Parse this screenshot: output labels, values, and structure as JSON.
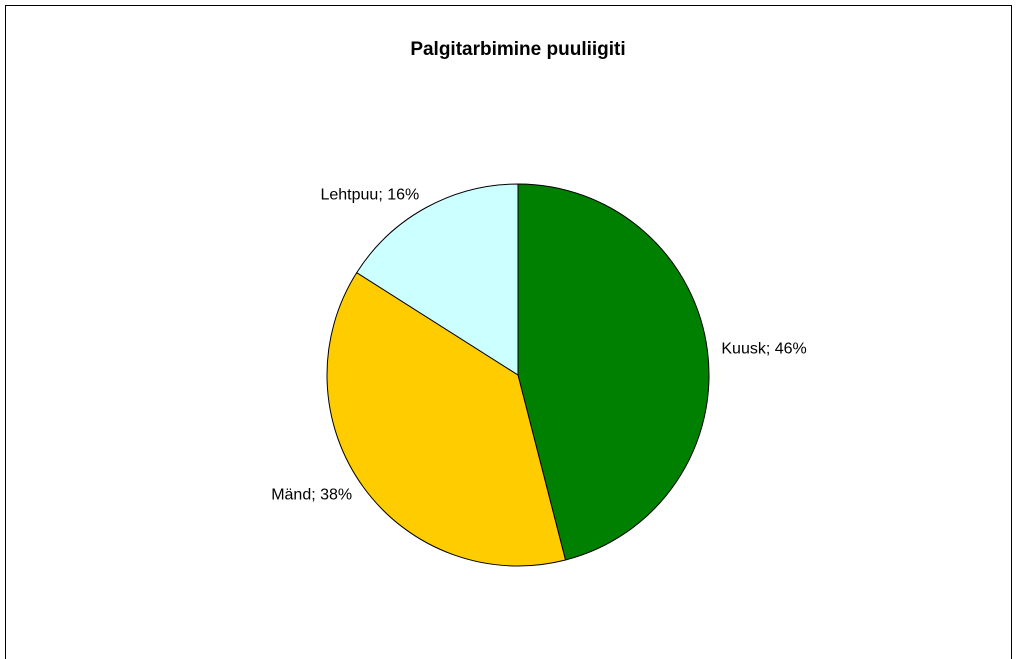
{
  "chart_data": {
    "type": "pie",
    "title": "Palgitarbimine puuliigiti",
    "categories": [
      "Kuusk",
      "Mänd",
      "Lehtpuu"
    ],
    "values": [
      46,
      38,
      16
    ],
    "value_labels": [
      "Kuusk; 46%",
      "Mänd; 38%",
      "Lehtpuu; 16%"
    ],
    "colors": [
      "#008000",
      "#ffcc00",
      "#ccffff"
    ]
  }
}
